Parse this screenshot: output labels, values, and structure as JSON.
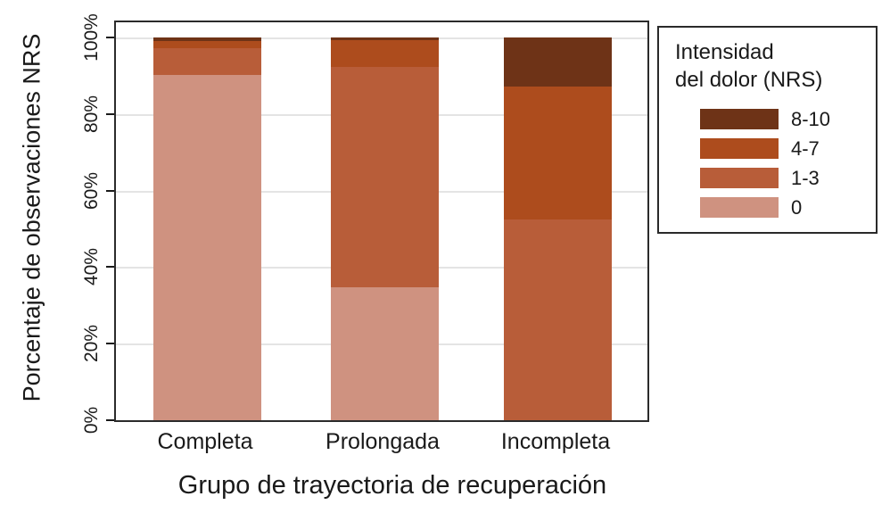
{
  "chart_data": {
    "type": "bar",
    "subtype": "stacked-100-percent",
    "title": "",
    "xlabel": "Grupo de trayectoria de recuperación",
    "ylabel": "Porcentaje de observaciones NRS",
    "categories": [
      "Completa",
      "Prolongada",
      "Incompleta"
    ],
    "series": [
      {
        "name": "8-10",
        "color": "#6e3317",
        "values": [
          1.0,
          0.6,
          12.9
        ]
      },
      {
        "name": "4-7",
        "color": "#ad4c1d",
        "values": [
          1.8,
          7.2,
          34.7
        ]
      },
      {
        "name": "1-3",
        "color": "#b85d39",
        "values": [
          7.0,
          57.5,
          52.4
        ]
      },
      {
        "name": "0",
        "color": "#cf9280",
        "values": [
          90.2,
          34.7,
          0.0
        ]
      }
    ],
    "y_ticks": [
      {
        "value": 0,
        "label": "0%"
      },
      {
        "value": 20,
        "label": "20%"
      },
      {
        "value": 40,
        "label": "40%"
      },
      {
        "value": 60,
        "label": "60%"
      },
      {
        "value": 80,
        "label": "80%"
      },
      {
        "value": 100,
        "label": "100%"
      }
    ],
    "ylim": [
      0,
      100
    ],
    "grid": true,
    "legend": {
      "position": "right",
      "title_line1": "Intensidad",
      "title_line2": "del dolor (NRS)",
      "entries": [
        "8-10",
        "4-7",
        "1-3",
        "0"
      ]
    },
    "colors": {
      "frame": "#2b2b2b",
      "gridline": "#e4e4e4",
      "text": "#1a1a1a",
      "background": "#ffffff"
    }
  }
}
